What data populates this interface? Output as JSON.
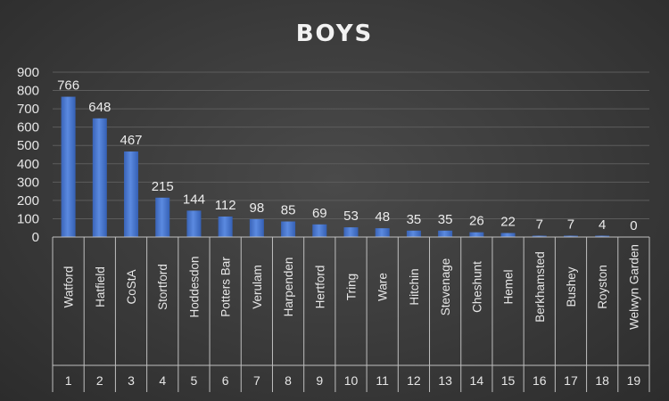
{
  "chart_data": {
    "type": "bar",
    "title": "BOYS",
    "ylim": [
      0,
      900
    ],
    "yticks": [
      0,
      100,
      200,
      300,
      400,
      500,
      600,
      700,
      800,
      900
    ],
    "grid": true,
    "legend": "none",
    "bar_color": "#4472c4",
    "categories": [
      "Watford",
      "Hatfield",
      "CoStA",
      "Stortford",
      "Hoddesdon",
      "Potters Bar",
      "Verulam",
      "Harpenden",
      "Hertford",
      "Tring",
      "Ware",
      "Hitchin",
      "Stevenage",
      "Cheshunt",
      "Hemel",
      "Berkhamsted",
      "Bushey",
      "Royston",
      "Welwyn Garden"
    ],
    "ranks": [
      "1",
      "2",
      "3",
      "4",
      "5",
      "6",
      "7",
      "8",
      "9",
      "10",
      "11",
      "12",
      "13",
      "14",
      "15",
      "16",
      "17",
      "18",
      "19"
    ],
    "values": [
      766,
      648,
      467,
      215,
      144,
      112,
      98,
      85,
      69,
      53,
      48,
      35,
      35,
      26,
      22,
      7,
      7,
      4,
      0
    ]
  }
}
